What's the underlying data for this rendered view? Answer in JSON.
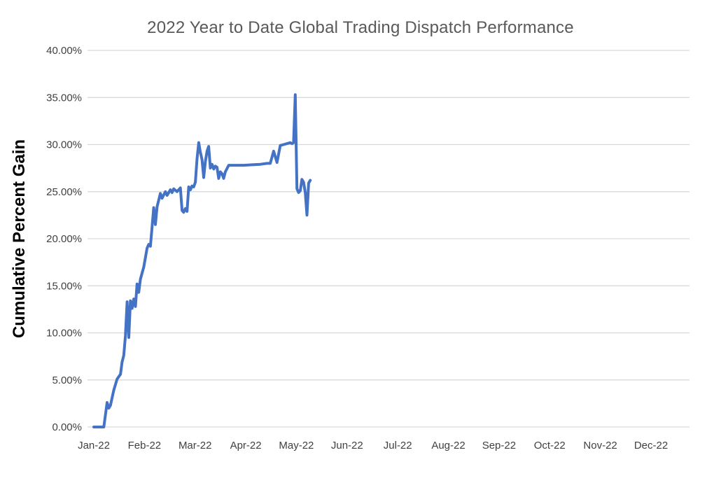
{
  "chart_data": {
    "type": "line",
    "title": "2022 Year to Date Global Trading Dispatch Performance",
    "ylabel": "Cumulative Percent Gain",
    "xlabel": "",
    "ylim": [
      0,
      40
    ],
    "y_tick_step": 5,
    "grid": true,
    "legend": false,
    "line_color": "#4472C4",
    "gridline_color": "#D9D9D9",
    "title_color": "#595959",
    "axis_text_color": "#404040",
    "x_tick_labels": [
      "Jan-22",
      "Feb-22",
      "Mar-22",
      "Apr-22",
      "May-22",
      "Jun-22",
      "Jul-22",
      "Aug-22",
      "Sep-22",
      "Oct-22",
      "Nov-22",
      "Dec-22"
    ],
    "y_tick_labels": [
      "0.00%",
      "5.00%",
      "10.00%",
      "15.00%",
      "20.00%",
      "25.00%",
      "30.00%",
      "35.00%",
      "40.00%"
    ],
    "series": [
      {
        "name": "Cumulative Percent Gain",
        "x_unit": "days-from-jan-1-2022",
        "y_unit": "percent",
        "points": [
          [
            0,
            0.0
          ],
          [
            6,
            0.0
          ],
          [
            8,
            2.6
          ],
          [
            9,
            2.0
          ],
          [
            10,
            2.3
          ],
          [
            12,
            3.9
          ],
          [
            14,
            5.1
          ],
          [
            16,
            5.6
          ],
          [
            17,
            6.9
          ],
          [
            18,
            7.6
          ],
          [
            19,
            9.7
          ],
          [
            20,
            13.3
          ],
          [
            21,
            9.5
          ],
          [
            22,
            13.4
          ],
          [
            23,
            12.6
          ],
          [
            24,
            13.6
          ],
          [
            25,
            12.8
          ],
          [
            26,
            15.2
          ],
          [
            27,
            14.3
          ],
          [
            28,
            15.7
          ],
          [
            30,
            17.0
          ],
          [
            32,
            19.0
          ],
          [
            33,
            19.4
          ],
          [
            34,
            19.2
          ],
          [
            36,
            23.3
          ],
          [
            37,
            21.5
          ],
          [
            38,
            23.4
          ],
          [
            40,
            24.8
          ],
          [
            41,
            24.3
          ],
          [
            43,
            25.0
          ],
          [
            44,
            24.6
          ],
          [
            46,
            25.2
          ],
          [
            47,
            24.9
          ],
          [
            48,
            25.3
          ],
          [
            50,
            25.0
          ],
          [
            52,
            25.4
          ],
          [
            53,
            23.0
          ],
          [
            54,
            22.8
          ],
          [
            55,
            23.2
          ],
          [
            56,
            22.9
          ],
          [
            57,
            25.5
          ],
          [
            58,
            25.2
          ],
          [
            59,
            25.6
          ],
          [
            60,
            25.5
          ],
          [
            61,
            26.0
          ],
          [
            62,
            28.5
          ],
          [
            63,
            30.2
          ],
          [
            64,
            29.2
          ],
          [
            65,
            28.4
          ],
          [
            66,
            26.5
          ],
          [
            67,
            28.2
          ],
          [
            68,
            29.3
          ],
          [
            69,
            29.8
          ],
          [
            70,
            27.5
          ],
          [
            71,
            27.9
          ],
          [
            72,
            27.4
          ],
          [
            73,
            27.7
          ],
          [
            74,
            27.6
          ],
          [
            75,
            26.4
          ],
          [
            76,
            27.1
          ],
          [
            77,
            26.9
          ],
          [
            78,
            26.4
          ],
          [
            79,
            27.1
          ],
          [
            81,
            27.8
          ],
          [
            85,
            27.8
          ],
          [
            90,
            27.8
          ],
          [
            95,
            27.85
          ],
          [
            100,
            27.9
          ],
          [
            104,
            28.0
          ],
          [
            106,
            28.0
          ],
          [
            108,
            29.3
          ],
          [
            110,
            28.1
          ],
          [
            112,
            29.9
          ],
          [
            114,
            30.0
          ],
          [
            116,
            30.1
          ],
          [
            118,
            30.2
          ],
          [
            119,
            30.1
          ],
          [
            120,
            30.2
          ],
          [
            121,
            35.3
          ],
          [
            122,
            25.3
          ],
          [
            123,
            24.9
          ],
          [
            124,
            25.1
          ],
          [
            125,
            26.3
          ],
          [
            126,
            26.0
          ],
          [
            127,
            24.9
          ],
          [
            128,
            22.5
          ],
          [
            129,
            25.9
          ],
          [
            130,
            26.2
          ]
        ]
      }
    ]
  }
}
